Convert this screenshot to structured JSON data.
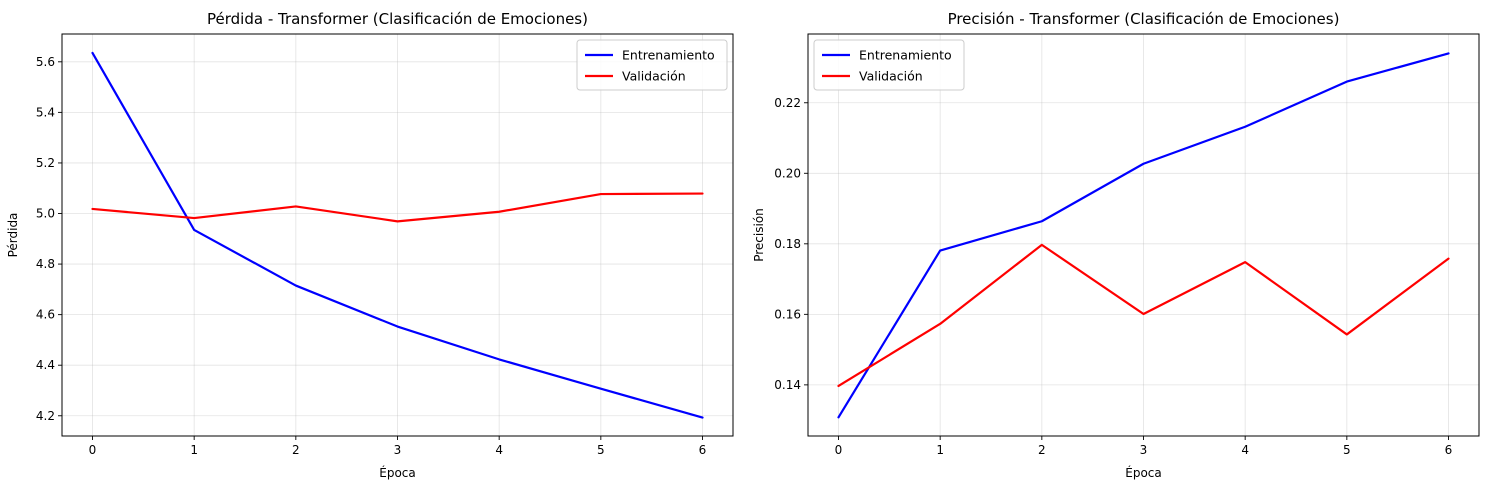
{
  "chart_data": [
    {
      "type": "line",
      "title": "Pérdida - Transformer (Clasificación de Emociones)",
      "xlabel": "Época",
      "ylabel": "Pérdida",
      "x": [
        0,
        1,
        2,
        3,
        4,
        5,
        6
      ],
      "xlim": [
        -0.3,
        6.3
      ],
      "ylim": [
        4.12,
        5.71
      ],
      "xticks": [
        0,
        1,
        2,
        3,
        4,
        5,
        6
      ],
      "yticks": [
        4.2,
        4.4,
        4.6,
        4.8,
        5.0,
        5.2,
        5.4,
        5.6
      ],
      "ytick_decimals": 1,
      "grid": true,
      "legend_position": "top-right",
      "series": [
        {
          "name": "Entrenamiento",
          "color": "#0000ff",
          "values": [
            5.635,
            4.935,
            4.715,
            4.553,
            4.423,
            4.307,
            4.193
          ]
        },
        {
          "name": "Validación",
          "color": "#ff0000",
          "values": [
            5.018,
            4.982,
            5.028,
            4.969,
            5.007,
            5.077,
            5.079
          ]
        }
      ]
    },
    {
      "type": "line",
      "title": "Precisión - Transformer (Clasificación de Emociones)",
      "xlabel": "Época",
      "ylabel": "Precisión",
      "x": [
        0,
        1,
        2,
        3,
        4,
        5,
        6
      ],
      "xlim": [
        -0.3,
        6.3
      ],
      "ylim": [
        0.1255,
        0.2395
      ],
      "xticks": [
        0,
        1,
        2,
        3,
        4,
        5,
        6
      ],
      "yticks": [
        0.14,
        0.16,
        0.18,
        0.2,
        0.22
      ],
      "ytick_decimals": 2,
      "grid": true,
      "legend_position": "top-left",
      "series": [
        {
          "name": "Entrenamiento",
          "color": "#0000ff",
          "values": [
            0.1308,
            0.1781,
            0.1864,
            0.2027,
            0.2132,
            0.226,
            0.234
          ]
        },
        {
          "name": "Validación",
          "color": "#ff0000",
          "values": [
            0.1397,
            0.1573,
            0.1797,
            0.1601,
            0.1748,
            0.1543,
            0.1758
          ]
        }
      ]
    }
  ]
}
